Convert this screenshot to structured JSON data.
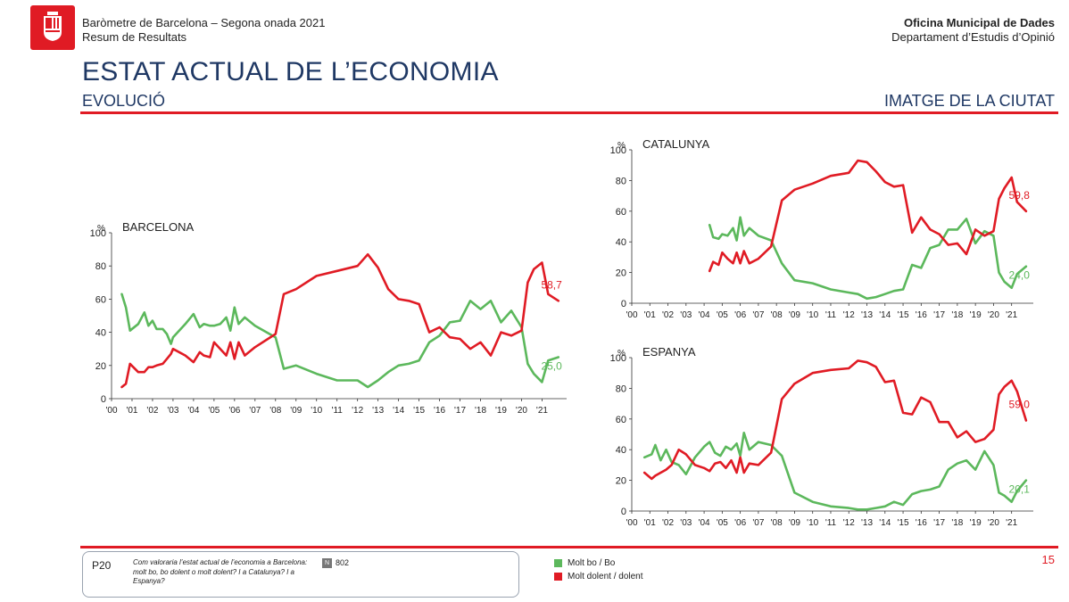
{
  "header": {
    "line1": "Baròmetre de Barcelona – Segona onada 2021",
    "line2": "Resum de Resultats",
    "org_name": "Oficina Municipal de Dades",
    "dept_name": "Departament d’Estudis d’Opinió"
  },
  "title": "ESTAT ACTUAL DE L’ECONOMIA",
  "subtitle_left": "EVOLUCIÓ",
  "subtitle_right": "IMATGE DE LA CIUTAT",
  "colors": {
    "good": "#5cb85c",
    "bad": "#e01b24",
    "title": "#1f3864"
  },
  "question": {
    "id": "P20",
    "text": "Com valoraria l’estat actual de l’economia a Barcelona: molt bo, bo dolent o molt dolent? I a Catalunya? I a Espanya?",
    "n_icon": "N",
    "n": "802"
  },
  "legend": {
    "good_label": "Molt bo / Bo",
    "bad_label": "Molt dolent / dolent"
  },
  "page_number": "15",
  "chart_data": [
    {
      "id": "barcelona",
      "type": "line",
      "title": "BARCELONA",
      "ylabel": "%",
      "ylim": [
        0,
        100
      ],
      "yticks": [
        "0",
        "20",
        "40",
        "60",
        "80",
        "100"
      ],
      "xlim": [
        2000,
        2022.2
      ],
      "xtick_labels": [
        "'00",
        "'01",
        "'02",
        "'03",
        "'04",
        "'05",
        "'06",
        "'07",
        "'08",
        "'09",
        "'10",
        "'11",
        "'12",
        "'13",
        "'14",
        "'15",
        "'16",
        "'17",
        "'18",
        "'19",
        "'20",
        "'21"
      ],
      "series": [
        {
          "name": "Molt bo / Bo",
          "end_label": "25,0",
          "x": [
            2000.5,
            2000.7,
            2000.9,
            2001.3,
            2001.6,
            2001.8,
            2002.0,
            2002.2,
            2002.5,
            2002.7,
            2002.9,
            2003.0,
            2003.6,
            2004.0,
            2004.3,
            2004.5,
            2004.8,
            2005.0,
            2005.3,
            2005.6,
            2005.8,
            2006.0,
            2006.2,
            2006.5,
            2007.0,
            2008.0,
            2008.4,
            2009.0,
            2010.0,
            2011.0,
            2012.0,
            2012.5,
            2013.0,
            2013.5,
            2014.0,
            2014.5,
            2015.0,
            2015.5,
            2016.0,
            2016.5,
            2017.0,
            2017.5,
            2018.0,
            2018.5,
            2019.0,
            2019.5,
            2020.0,
            2020.3,
            2020.6,
            2021.0,
            2021.3,
            2021.8
          ],
          "y": [
            63,
            55,
            41,
            45,
            52,
            44,
            47,
            42,
            42,
            39,
            33,
            37,
            45,
            51,
            43,
            45,
            44,
            44,
            45,
            49,
            41,
            55,
            45,
            49,
            44,
            37,
            18,
            20,
            15,
            11,
            11,
            7,
            11,
            16,
            20,
            21,
            23,
            34,
            38,
            46,
            47,
            59,
            54,
            59,
            46,
            53,
            43,
            21,
            15,
            10,
            23,
            25
          ]
        },
        {
          "name": "Molt dolent / dolent",
          "end_label": "58,7",
          "x": [
            2000.5,
            2000.7,
            2000.9,
            2001.3,
            2001.6,
            2001.8,
            2002.0,
            2002.2,
            2002.5,
            2002.7,
            2002.9,
            2003.0,
            2003.6,
            2004.0,
            2004.3,
            2004.5,
            2004.8,
            2005.0,
            2005.3,
            2005.6,
            2005.8,
            2006.0,
            2006.2,
            2006.5,
            2007.0,
            2008.0,
            2008.4,
            2009.0,
            2010.0,
            2011.0,
            2012.0,
            2012.5,
            2013.0,
            2013.5,
            2014.0,
            2014.5,
            2015.0,
            2015.5,
            2016.0,
            2016.5,
            2017.0,
            2017.5,
            2018.0,
            2018.5,
            2019.0,
            2019.5,
            2020.0,
            2020.3,
            2020.6,
            2021.0,
            2021.3,
            2021.8
          ],
          "y": [
            7,
            9,
            21,
            16,
            16,
            19,
            19,
            20,
            21,
            24,
            27,
            30,
            26,
            22,
            28,
            26,
            25,
            34,
            30,
            26,
            34,
            24,
            34,
            26,
            31,
            39,
            63,
            66,
            74,
            77,
            80,
            87,
            79,
            66,
            60,
            59,
            57,
            40,
            43,
            37,
            36,
            30,
            34,
            26,
            40,
            38,
            41,
            70,
            78,
            82,
            63,
            59
          ]
        }
      ]
    },
    {
      "id": "catalunya",
      "type": "line",
      "title": "CATALUNYA",
      "ylabel": "%",
      "ylim": [
        0,
        100
      ],
      "yticks": [
        "0",
        "20",
        "40",
        "60",
        "80",
        "100"
      ],
      "xlim": [
        2000,
        2022.2
      ],
      "xtick_labels": [
        "'00",
        "'01",
        "'02",
        "'03",
        "'04",
        "'05",
        "'06",
        "'07",
        "'08",
        "'09",
        "'10",
        "'11",
        "'12",
        "'13",
        "'14",
        "'15",
        "'16",
        "'17",
        "'18",
        "'19",
        "'20",
        "'21"
      ],
      "series": [
        {
          "name": "Molt bo / Bo",
          "end_label": "24,0",
          "x": [
            2004.3,
            2004.5,
            2004.8,
            2005.0,
            2005.3,
            2005.6,
            2005.8,
            2006.0,
            2006.2,
            2006.5,
            2007.0,
            2007.7,
            2008.3,
            2009.0,
            2010.0,
            2011.0,
            2012.0,
            2012.5,
            2013.0,
            2013.5,
            2014.0,
            2014.5,
            2015.0,
            2015.5,
            2016.0,
            2016.5,
            2017.0,
            2017.5,
            2018.0,
            2018.5,
            2019.0,
            2019.5,
            2020.0,
            2020.3,
            2020.6,
            2021.0,
            2021.3,
            2021.8
          ],
          "y": [
            51,
            43,
            42,
            45,
            44,
            49,
            41,
            56,
            44,
            49,
            44,
            41,
            26,
            15,
            13,
            9,
            7,
            6,
            3,
            4,
            6,
            8,
            9,
            25,
            23,
            36,
            38,
            48,
            48,
            55,
            39,
            47,
            44,
            20,
            14,
            10,
            19,
            24
          ]
        },
        {
          "name": "Molt dolent / dolent",
          "end_label": "59,8",
          "x": [
            2004.3,
            2004.5,
            2004.8,
            2005.0,
            2005.3,
            2005.6,
            2005.8,
            2006.0,
            2006.2,
            2006.5,
            2007.0,
            2007.7,
            2008.3,
            2009.0,
            2010.0,
            2011.0,
            2012.0,
            2012.5,
            2013.0,
            2013.5,
            2014.0,
            2014.5,
            2015.0,
            2015.5,
            2016.0,
            2016.5,
            2017.0,
            2017.5,
            2018.0,
            2018.5,
            2019.0,
            2019.5,
            2020.0,
            2020.3,
            2020.6,
            2021.0,
            2021.3,
            2021.8
          ],
          "y": [
            21,
            27,
            25,
            33,
            29,
            26,
            33,
            26,
            34,
            26,
            29,
            37,
            67,
            74,
            78,
            83,
            85,
            93,
            92,
            86,
            79,
            76,
            77,
            46,
            56,
            48,
            45,
            38,
            39,
            32,
            48,
            44,
            47,
            68,
            75,
            82,
            66,
            60
          ]
        }
      ]
    },
    {
      "id": "espanya",
      "type": "line",
      "title": "ESPANYA",
      "ylabel": "%",
      "ylim": [
        0,
        100
      ],
      "yticks": [
        "0",
        "20",
        "40",
        "60",
        "80",
        "100"
      ],
      "xlim": [
        2000,
        2022.2
      ],
      "xtick_labels": [
        "'00",
        "'01",
        "'02",
        "'03",
        "'04",
        "'05",
        "'06",
        "'07",
        "'08",
        "'09",
        "'10",
        "'11",
        "'12",
        "'13",
        "'14",
        "'15",
        "'16",
        "'17",
        "'18",
        "'19",
        "'20",
        "'21"
      ],
      "series": [
        {
          "name": "Molt bo / Bo",
          "end_label": "20,1",
          "x": [
            2000.7,
            2001.1,
            2001.3,
            2001.6,
            2001.9,
            2002.2,
            2002.6,
            2003.0,
            2003.5,
            2004.0,
            2004.3,
            2004.6,
            2004.9,
            2005.2,
            2005.5,
            2005.8,
            2006.0,
            2006.2,
            2006.5,
            2007.0,
            2007.7,
            2008.3,
            2009.0,
            2010.0,
            2011.0,
            2012.0,
            2012.5,
            2013.0,
            2013.5,
            2014.0,
            2014.5,
            2015.0,
            2015.5,
            2016.0,
            2016.5,
            2017.0,
            2017.5,
            2018.0,
            2018.5,
            2019.0,
            2019.5,
            2020.0,
            2020.3,
            2020.6,
            2021.0,
            2021.3,
            2021.8
          ],
          "y": [
            35,
            37,
            43,
            33,
            40,
            32,
            30,
            24,
            35,
            42,
            45,
            38,
            36,
            42,
            40,
            44,
            36,
            51,
            40,
            45,
            43,
            36,
            12,
            6,
            3,
            2,
            1,
            1,
            2,
            3,
            6,
            4,
            11,
            13,
            14,
            16,
            27,
            31,
            33,
            27,
            39,
            30,
            12,
            10,
            6,
            13,
            20
          ]
        },
        {
          "name": "Molt dolent / dolent",
          "end_label": "59,0",
          "x": [
            2000.7,
            2001.1,
            2001.3,
            2001.6,
            2001.9,
            2002.2,
            2002.6,
            2003.0,
            2003.5,
            2004.0,
            2004.3,
            2004.6,
            2004.9,
            2005.2,
            2005.5,
            2005.8,
            2006.0,
            2006.2,
            2006.5,
            2007.0,
            2007.7,
            2008.3,
            2009.0,
            2010.0,
            2011.0,
            2012.0,
            2012.5,
            2013.0,
            2013.5,
            2014.0,
            2014.5,
            2015.0,
            2015.5,
            2016.0,
            2016.5,
            2017.0,
            2017.5,
            2018.0,
            2018.5,
            2019.0,
            2019.5,
            2020.0,
            2020.3,
            2020.6,
            2021.0,
            2021.3,
            2021.8
          ],
          "y": [
            25,
            21,
            23,
            25,
            27,
            30,
            40,
            37,
            30,
            28,
            26,
            31,
            32,
            28,
            33,
            25,
            35,
            25,
            31,
            30,
            38,
            73,
            83,
            90,
            92,
            93,
            98,
            97,
            94,
            84,
            85,
            64,
            63,
            74,
            71,
            58,
            58,
            48,
            52,
            45,
            47,
            53,
            76,
            81,
            85,
            78,
            59
          ]
        }
      ]
    }
  ]
}
